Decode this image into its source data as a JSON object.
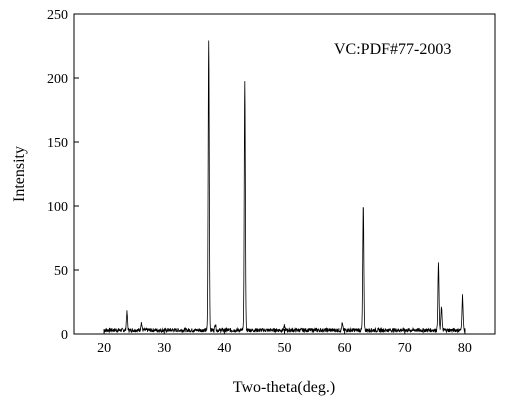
{
  "chart_data": {
    "type": "line",
    "title": "",
    "xlabel": "Two-theta(deg.)",
    "ylabel": "Intensity",
    "xlim": [
      15,
      85
    ],
    "ylim": [
      0,
      250
    ],
    "x_ticks": [
      20,
      30,
      40,
      50,
      60,
      70,
      80
    ],
    "y_ticks": [
      0,
      50,
      100,
      150,
      200,
      250
    ],
    "grid": false,
    "legend": "none",
    "annotation": "VC:PDF#77-2003",
    "series": [
      {
        "line_color": "#000000",
        "x_range": [
          20,
          80
        ],
        "baseline": 3,
        "peaks": [
          {
            "x": 23.8,
            "y": 17
          },
          {
            "x": 26.2,
            "y": 9
          },
          {
            "x": 37.4,
            "y": 229
          },
          {
            "x": 38.5,
            "y": 8
          },
          {
            "x": 43.4,
            "y": 196
          },
          {
            "x": 50.0,
            "y": 6
          },
          {
            "x": 59.6,
            "y": 8
          },
          {
            "x": 63.1,
            "y": 100
          },
          {
            "x": 75.6,
            "y": 55
          },
          {
            "x": 76.1,
            "y": 22
          },
          {
            "x": 79.6,
            "y": 30
          }
        ]
      }
    ]
  }
}
